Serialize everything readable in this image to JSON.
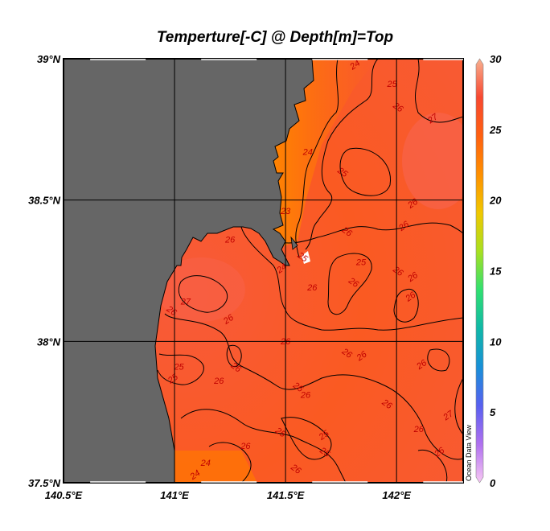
{
  "title": "Temperture[-C] @ Depth[m]=Top",
  "map": {
    "lon_range": [
      140.5,
      142.3
    ],
    "lat_range": [
      37.5,
      39.0
    ],
    "lon_ticks": [
      {
        "v": 140.5,
        "label": "140.5°E"
      },
      {
        "v": 141.0,
        "label": "141°E"
      },
      {
        "v": 141.5,
        "label": "141.5°E"
      },
      {
        "v": 142.0,
        "label": "142°E"
      }
    ],
    "lat_ticks": [
      {
        "v": 37.5,
        "label": "37.5°N"
      },
      {
        "v": 38.0,
        "label": "38°N"
      },
      {
        "v": 38.5,
        "label": "38.5°N"
      },
      {
        "v": 39.0,
        "label": "39°N"
      }
    ],
    "grid": true,
    "land_color": "#666666",
    "variable": "Temperature",
    "contour_interval": 1,
    "contour_labels": [
      {
        "v": "24",
        "lon": 141.82,
        "lat": 38.97
      },
      {
        "v": "25",
        "lon": 141.98,
        "lat": 38.9
      },
      {
        "v": "26",
        "lon": 142.0,
        "lat": 38.82
      },
      {
        "v": "27",
        "lon": 142.17,
        "lat": 38.78
      },
      {
        "v": "24",
        "lon": 141.6,
        "lat": 38.66
      },
      {
        "v": "25",
        "lon": 141.75,
        "lat": 38.59
      },
      {
        "v": "26",
        "lon": 142.08,
        "lat": 38.48
      },
      {
        "v": "23",
        "lon": 141.5,
        "lat": 38.45
      },
      {
        "v": "26",
        "lon": 141.77,
        "lat": 38.38
      },
      {
        "v": "26",
        "lon": 142.04,
        "lat": 38.4
      },
      {
        "v": "26",
        "lon": 141.25,
        "lat": 38.35
      },
      {
        "v": "25",
        "lon": 141.57,
        "lat": 38.29
      },
      {
        "v": "24",
        "lon": 141.49,
        "lat": 38.25
      },
      {
        "v": "25",
        "lon": 141.84,
        "lat": 38.27
      },
      {
        "v": "26",
        "lon": 142.0,
        "lat": 38.24
      },
      {
        "v": "26",
        "lon": 142.08,
        "lat": 38.22
      },
      {
        "v": "26",
        "lon": 141.62,
        "lat": 38.18
      },
      {
        "v": "26",
        "lon": 141.8,
        "lat": 38.2
      },
      {
        "v": "26",
        "lon": 142.07,
        "lat": 38.15
      },
      {
        "v": "27",
        "lon": 141.05,
        "lat": 38.13
      },
      {
        "v": "26",
        "lon": 140.98,
        "lat": 38.1
      },
      {
        "v": "26",
        "lon": 141.25,
        "lat": 38.07
      },
      {
        "v": "26",
        "lon": 141.5,
        "lat": 37.99
      },
      {
        "v": "26",
        "lon": 141.77,
        "lat": 37.95
      },
      {
        "v": "26",
        "lon": 141.85,
        "lat": 37.94
      },
      {
        "v": "25",
        "lon": 141.02,
        "lat": 37.9
      },
      {
        "v": "26",
        "lon": 141.27,
        "lat": 37.9
      },
      {
        "v": "25",
        "lon": 141.0,
        "lat": 37.86
      },
      {
        "v": "26",
        "lon": 141.2,
        "lat": 37.85
      },
      {
        "v": "26",
        "lon": 141.55,
        "lat": 37.83
      },
      {
        "v": "26",
        "lon": 142.12,
        "lat": 37.91
      },
      {
        "v": "26",
        "lon": 141.59,
        "lat": 37.8
      },
      {
        "v": "26",
        "lon": 141.95,
        "lat": 37.77
      },
      {
        "v": "27",
        "lon": 142.24,
        "lat": 37.73
      },
      {
        "v": "26",
        "lon": 142.1,
        "lat": 37.68
      },
      {
        "v": "25",
        "lon": 141.47,
        "lat": 37.67
      },
      {
        "v": "25",
        "lon": 141.68,
        "lat": 37.66
      },
      {
        "v": "26",
        "lon": 141.32,
        "lat": 37.62
      },
      {
        "v": "25",
        "lon": 141.67,
        "lat": 37.6
      },
      {
        "v": "26",
        "lon": 142.2,
        "lat": 37.6
      },
      {
        "v": "24",
        "lon": 141.14,
        "lat": 37.56
      },
      {
        "v": "26",
        "lon": 141.54,
        "lat": 37.54
      },
      {
        "v": "24",
        "lon": 141.1,
        "lat": 37.52
      }
    ]
  },
  "colorbar": {
    "min": 0,
    "max": 30,
    "ticks": [
      "0",
      "5",
      "10",
      "15",
      "20",
      "25",
      "30"
    ],
    "colors": [
      "#f8c8f4",
      "#b070f0",
      "#5860f0",
      "#1890d8",
      "#10b8a8",
      "#30e070",
      "#a8e020",
      "#f0c800",
      "#ff9000",
      "#ff6010",
      "#f84830",
      "#f8b090"
    ]
  },
  "watermark": "Ocean Data View"
}
